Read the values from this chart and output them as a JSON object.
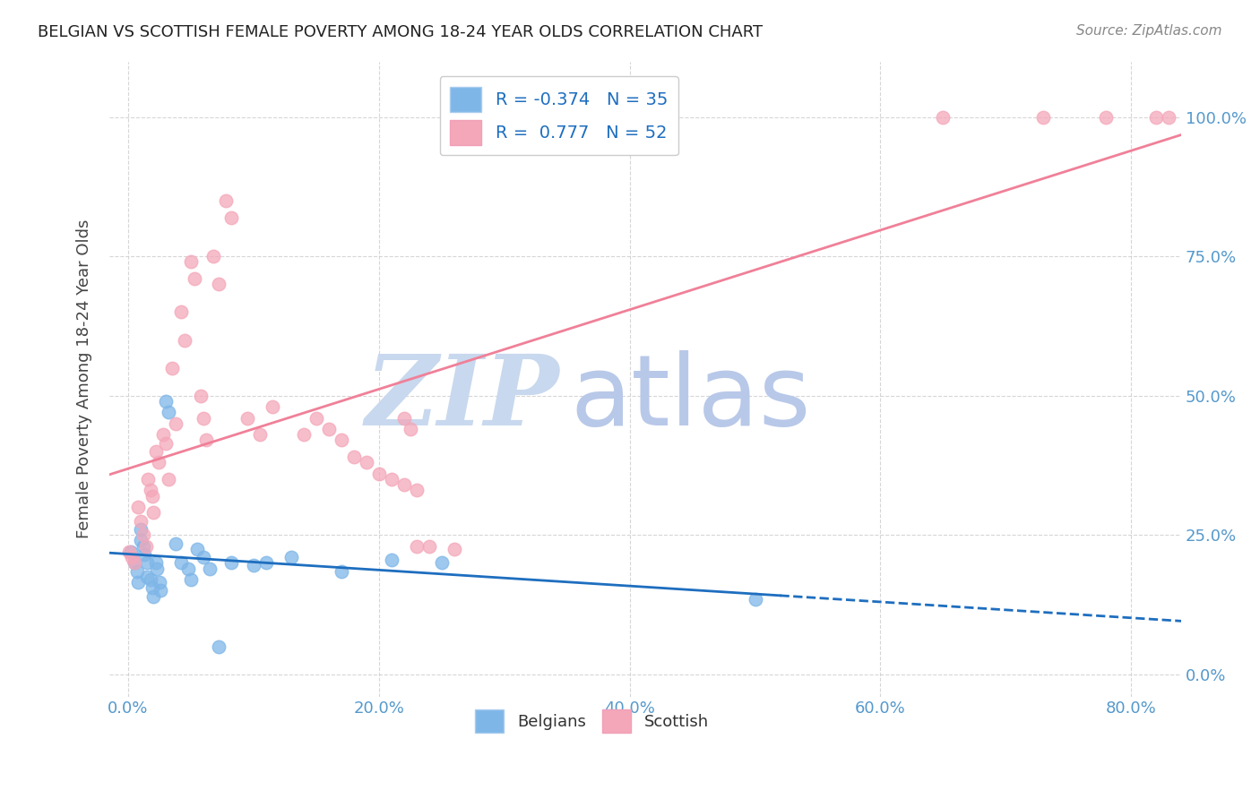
{
  "title": "BELGIAN VS SCOTTISH FEMALE POVERTY AMONG 18-24 YEAR OLDS CORRELATION CHART",
  "source": "Source: ZipAtlas.com",
  "ylabel": "Female Poverty Among 18-24 Year Olds",
  "xlabel_ticks": [
    "0.0%",
    "20.0%",
    "40.0%",
    "60.0%",
    "80.0%"
  ],
  "xlabel_vals": [
    0.0,
    0.2,
    0.4,
    0.6,
    0.8
  ],
  "ylabel_ticks_right": [
    "0.0%",
    "25.0%",
    "50.0%",
    "75.0%",
    "100.0%"
  ],
  "ylabel_vals": [
    0.0,
    0.25,
    0.5,
    0.75,
    1.0
  ],
  "xlim": [
    -0.015,
    0.84
  ],
  "ylim": [
    -0.04,
    1.1
  ],
  "belgian_color": "#7EB6E8",
  "scottish_color": "#F4A7B9",
  "belgian_line_color": "#1E6EBF",
  "scottish_line_color": "#F08098",
  "belgian_R": -0.374,
  "scottish_R": 0.777,
  "belgian_N": 35,
  "scottish_N": 52,
  "watermark_zip": "ZIP",
  "watermark_atlas": "atlas",
  "watermark_color_zip": "#C8D8EE",
  "watermark_color_atlas": "#B8C8E8",
  "belgian_x": [
    0.002,
    0.005,
    0.007,
    0.008,
    0.01,
    0.01,
    0.012,
    0.013,
    0.015,
    0.015,
    0.018,
    0.019,
    0.02,
    0.022,
    0.023,
    0.025,
    0.026,
    0.03,
    0.032,
    0.038,
    0.042,
    0.048,
    0.05,
    0.055,
    0.06,
    0.065,
    0.072,
    0.082,
    0.1,
    0.11,
    0.13,
    0.17,
    0.21,
    0.25,
    0.5
  ],
  "belgian_y": [
    0.22,
    0.2,
    0.185,
    0.165,
    0.26,
    0.24,
    0.23,
    0.215,
    0.2,
    0.175,
    0.17,
    0.155,
    0.14,
    0.2,
    0.19,
    0.165,
    0.15,
    0.49,
    0.47,
    0.235,
    0.2,
    0.19,
    0.17,
    0.225,
    0.21,
    0.19,
    0.05,
    0.2,
    0.195,
    0.2,
    0.21,
    0.185,
    0.205,
    0.2,
    0.135
  ],
  "scottish_x": [
    0.001,
    0.003,
    0.005,
    0.008,
    0.01,
    0.012,
    0.014,
    0.016,
    0.018,
    0.019,
    0.02,
    0.022,
    0.024,
    0.028,
    0.03,
    0.032,
    0.035,
    0.038,
    0.042,
    0.045,
    0.05,
    0.053,
    0.058,
    0.06,
    0.062,
    0.068,
    0.072,
    0.078,
    0.082,
    0.095,
    0.105,
    0.115,
    0.14,
    0.15,
    0.16,
    0.17,
    0.18,
    0.19,
    0.2,
    0.21,
    0.22,
    0.23,
    0.24,
    0.26,
    0.22,
    0.225,
    0.23,
    0.65,
    0.73,
    0.78,
    0.82,
    0.83
  ],
  "scottish_y": [
    0.22,
    0.21,
    0.2,
    0.3,
    0.275,
    0.25,
    0.23,
    0.35,
    0.33,
    0.32,
    0.29,
    0.4,
    0.38,
    0.43,
    0.415,
    0.35,
    0.55,
    0.45,
    0.65,
    0.6,
    0.74,
    0.71,
    0.5,
    0.46,
    0.42,
    0.75,
    0.7,
    0.85,
    0.82,
    0.46,
    0.43,
    0.48,
    0.43,
    0.46,
    0.44,
    0.42,
    0.39,
    0.38,
    0.36,
    0.35,
    0.34,
    0.33,
    0.23,
    0.225,
    0.46,
    0.44,
    0.23,
    1.0,
    1.0,
    1.0,
    1.0,
    1.0
  ]
}
